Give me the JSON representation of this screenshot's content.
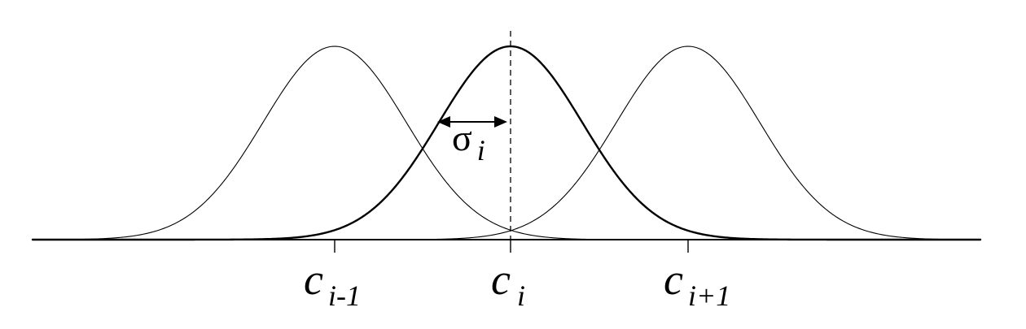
{
  "gaussians": [
    {
      "id": "prev",
      "center_label": "c",
      "center_sub": "i-1",
      "emphasis": "thin"
    },
    {
      "id": "current",
      "center_label": "c",
      "center_sub": "i",
      "emphasis": "bold"
    },
    {
      "id": "next",
      "center_label": "c",
      "center_sub": "i+1",
      "emphasis": "thin"
    }
  ],
  "width_label": {
    "symbol": "σ",
    "subscript": "i"
  },
  "colors": {
    "stroke": "#000000",
    "background": "#ffffff"
  }
}
